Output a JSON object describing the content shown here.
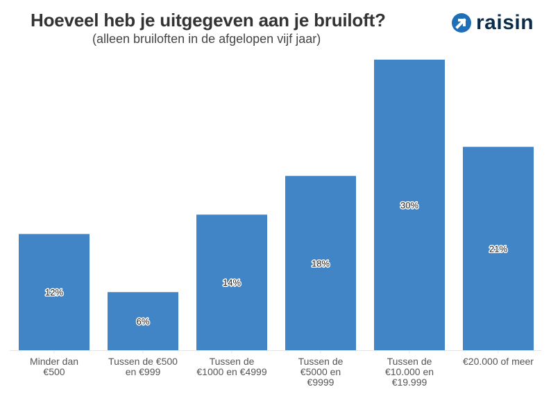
{
  "title": "Hoeveel heb je uitgegeven aan je bruiloft?",
  "subtitle": "(alleen bruiloften in de afgelopen vijf jaar)",
  "logo": {
    "text": "raisin",
    "icon": "arrow-up-right-circle-icon",
    "color": "#0c2c4c",
    "accent": "#1f6fb8"
  },
  "chart_data": {
    "type": "bar",
    "title": "Hoeveel heb je uitgegeven aan je bruiloft?",
    "subtitle": "(alleen bruiloften in de afgelopen vijf jaar)",
    "categories": [
      "Minder dan\n€500",
      "Tussen de €500\nen €999",
      "Tussen de\n€1000 en €4999",
      "Tussen de\n€5000 en\n€9999",
      "Tussen de\n€10.000 en\n€19.999",
      "€20.000 of meer"
    ],
    "values": [
      12,
      6,
      14,
      18,
      30,
      21
    ],
    "labels": [
      "12%",
      "6%",
      "14%",
      "18%",
      "30%",
      "21%"
    ],
    "unit": "%",
    "ylim": [
      0,
      30
    ],
    "grid": false,
    "bar_color": "#4285c6",
    "xlabel": "",
    "ylabel": ""
  }
}
